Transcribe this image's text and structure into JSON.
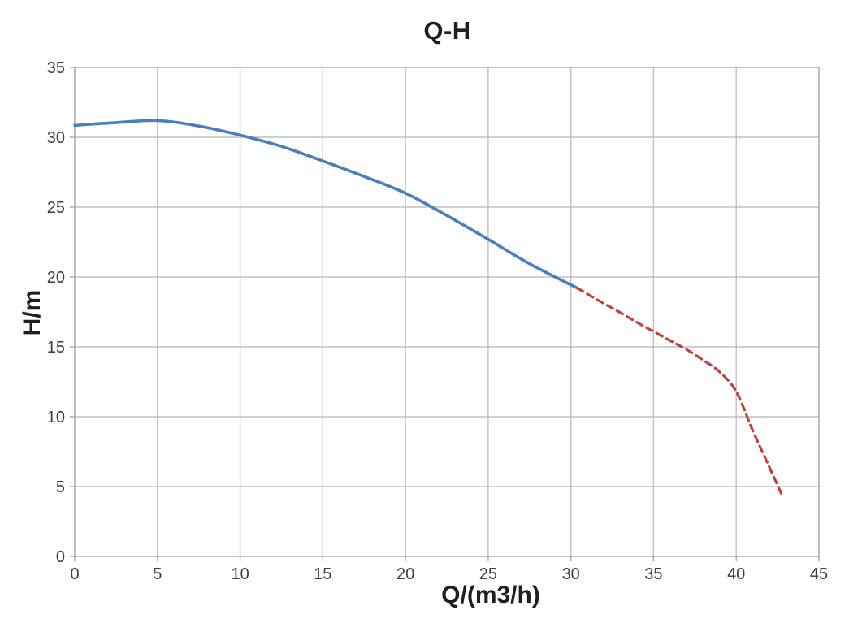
{
  "chart_data": {
    "type": "line",
    "title": "Q-H",
    "xlabel": "Q/(m3/h)",
    "ylabel": "H/m",
    "xlim": [
      0,
      45
    ],
    "ylim": [
      0,
      35
    ],
    "x_ticks": [
      0,
      5,
      10,
      15,
      20,
      25,
      30,
      35,
      40,
      45
    ],
    "y_ticks": [
      0,
      5,
      10,
      15,
      20,
      25,
      30,
      35
    ],
    "grid": true,
    "legend_position": "none",
    "series": [
      {
        "id": "solid-segment",
        "style": "solid",
        "color": "#4A7EBD",
        "stroke_width": 3.6,
        "x": [
          0,
          2.5,
          5,
          7.5,
          10,
          12.5,
          15,
          17.5,
          20,
          22.5,
          25,
          27.5,
          30.4
        ],
        "y": [
          30.85,
          31.05,
          31.2,
          30.8,
          30.15,
          29.35,
          28.3,
          27.2,
          26.0,
          24.4,
          22.7,
          20.95,
          19.2
        ]
      },
      {
        "id": "dashed-segment",
        "style": "dashed",
        "color": "#C04240",
        "stroke_width": 3.2,
        "dash": [
          8,
          6
        ],
        "x": [
          30.4,
          32,
          33,
          34,
          35,
          36,
          37,
          38,
          39,
          40,
          41,
          42,
          42.8
        ],
        "y": [
          19.2,
          18.1,
          17.45,
          16.75,
          16.1,
          15.45,
          14.8,
          14.05,
          13.2,
          11.8,
          9.0,
          6.4,
          4.3
        ]
      }
    ],
    "colors": {
      "gridline": "#C0C0C0",
      "plot_border": "#A6A6A6",
      "tick_text": "#3F3F3F",
      "title_text": "#1F1F1F",
      "background": "#FFFFFF"
    }
  }
}
